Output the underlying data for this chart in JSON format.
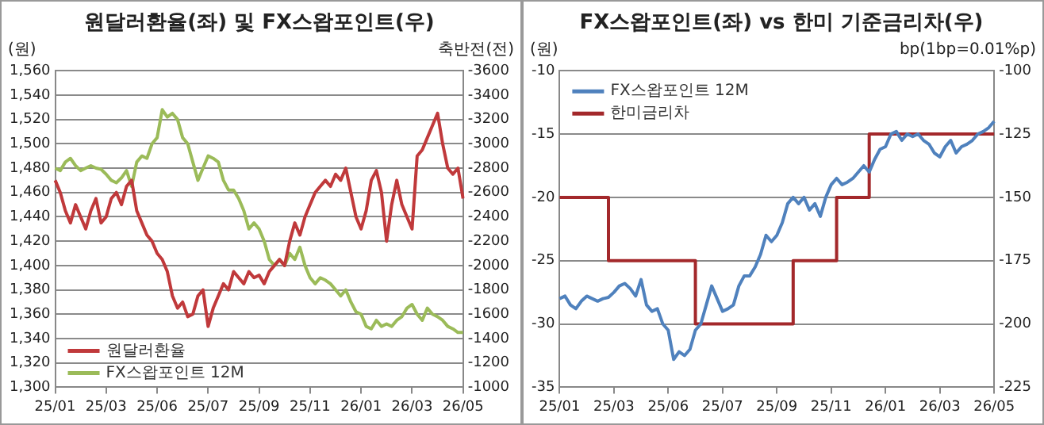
{
  "chart_data": [
    {
      "type": "line",
      "title": "원달러환율(좌) 및 FX스왑포인트(우)",
      "ylabel": "(원)",
      "y2label": "축반전(전)",
      "categories": [
        "25/01",
        null,
        null,
        null,
        null,
        null,
        null,
        null,
        null,
        null,
        "25/03",
        null,
        null,
        null,
        null,
        null,
        null,
        null,
        null,
        null,
        "25/06",
        null,
        null,
        null,
        null,
        null,
        null,
        null,
        null,
        null,
        "25/07",
        null,
        null,
        null,
        null,
        null,
        null,
        null,
        null,
        null,
        "25/09",
        null,
        null,
        null,
        null,
        null,
        null,
        null,
        null,
        null,
        "25/11",
        null,
        null,
        null,
        null,
        null,
        null,
        null,
        null,
        null,
        "26/01",
        null,
        null,
        null,
        null,
        null,
        null,
        null,
        null,
        null,
        "26/03",
        null,
        null,
        null,
        null,
        null,
        null,
        null,
        null,
        null,
        "26/05"
      ],
      "series": [
        {
          "name": "원달러환율",
          "color": "#c0393b",
          "values": [
            1470,
            1460,
            1445,
            1435,
            1450,
            1440,
            1430,
            1445,
            1455,
            1435,
            1440,
            1455,
            1460,
            1450,
            1465,
            1470,
            1445,
            1435,
            1425,
            1420,
            1410,
            1405,
            1395,
            1375,
            1365,
            1370,
            1358,
            1360,
            1375,
            1380,
            1350,
            1365,
            1375,
            1385,
            1380,
            1395,
            1390,
            1385,
            1395,
            1390,
            1392,
            1385,
            1395,
            1400,
            1405,
            1400,
            1420,
            1435,
            1425,
            1440,
            1450,
            1460,
            1465,
            1470,
            1465,
            1475,
            1470,
            1480,
            1460,
            1440,
            1430,
            1445,
            1470,
            1478,
            1460,
            1420,
            1450,
            1470,
            1450,
            1440,
            1430,
            1490,
            1495,
            1505,
            1515,
            1525,
            1500,
            1480,
            1475,
            1480,
            1455
          ]
        },
        {
          "name": "FX스왑포인트 12M",
          "color": "#9bbb59",
          "axis": "y2",
          "values": [
            -2800,
            -2780,
            -2850,
            -2880,
            -2820,
            -2780,
            -2800,
            -2820,
            -2800,
            -2790,
            -2750,
            -2700,
            -2680,
            -2720,
            -2780,
            -2650,
            -2850,
            -2900,
            -2880,
            -3000,
            -3050,
            -3280,
            -3220,
            -3250,
            -3200,
            -3050,
            -3000,
            -2850,
            -2700,
            -2800,
            -2900,
            -2880,
            -2850,
            -2700,
            -2620,
            -2620,
            -2550,
            -2450,
            -2300,
            -2350,
            -2300,
            -2200,
            -2050,
            -2000,
            -2050,
            -2000,
            -2100,
            -2050,
            -2150,
            -2000,
            -1900,
            -1850,
            -1900,
            -1880,
            -1850,
            -1800,
            -1750,
            -1800,
            -1700,
            -1620,
            -1600,
            -1500,
            -1480,
            -1550,
            -1500,
            -1520,
            -1500,
            -1550,
            -1580,
            -1650,
            -1680,
            -1600,
            -1550,
            -1650,
            -1600,
            -1580,
            -1550,
            -1500,
            -1480,
            -1450,
            -1450
          ]
        }
      ],
      "ylim": [
        1300,
        1560
      ],
      "yticks": [
        {
          "value": 1300,
          "label": "1,300"
        },
        {
          "value": 1320,
          "label": "1,320"
        },
        {
          "value": 1340,
          "label": "1,340"
        },
        {
          "value": 1360,
          "label": "1,360"
        },
        {
          "value": 1380,
          "label": "1,380"
        },
        {
          "value": 1400,
          "label": "1,400"
        },
        {
          "value": 1420,
          "label": "1,420"
        },
        {
          "value": 1440,
          "label": "1,440"
        },
        {
          "value": 1460,
          "label": "1,460"
        },
        {
          "value": 1480,
          "label": "1,480"
        },
        {
          "value": 1500,
          "label": "1,500"
        },
        {
          "value": 1520,
          "label": "1,520"
        },
        {
          "value": 1540,
          "label": "1,540"
        },
        {
          "value": 1560,
          "label": "1,560"
        }
      ],
      "y2lim": [
        -1000,
        -3600
      ],
      "y2ticks": [
        -1000,
        -1200,
        -1400,
        -1600,
        -1800,
        -2000,
        -2200,
        -2400,
        -2600,
        -2800,
        -3000,
        -3200,
        -3400,
        -3600
      ],
      "grid": "y",
      "legend": "bottom left"
    },
    {
      "type": "line",
      "title": "FX스왑포인트(좌) vs 한미 기준금리차(우)",
      "ylabel": "(원)",
      "y2label": "bp(1bp=0.01%p)",
      "categories": [
        "25/01",
        null,
        null,
        null,
        null,
        null,
        null,
        null,
        null,
        null,
        "25/03",
        null,
        null,
        null,
        null,
        null,
        null,
        null,
        null,
        null,
        "25/06",
        null,
        null,
        null,
        null,
        null,
        null,
        null,
        null,
        null,
        "25/07",
        null,
        null,
        null,
        null,
        null,
        null,
        null,
        null,
        null,
        "25/09",
        null,
        null,
        null,
        null,
        null,
        null,
        null,
        null,
        null,
        "25/11",
        null,
        null,
        null,
        null,
        null,
        null,
        null,
        null,
        null,
        "26/01",
        null,
        null,
        null,
        null,
        null,
        null,
        null,
        null,
        null,
        "26/03",
        null,
        null,
        null,
        null,
        null,
        null,
        null,
        null,
        null,
        "26/05"
      ],
      "series": [
        {
          "name": "FX스왑포인트 12M",
          "color": "#4f81bd",
          "values": [
            -28,
            -27.8,
            -28.5,
            -28.8,
            -28.2,
            -27.8,
            -28,
            -28.2,
            -28,
            -27.9,
            -27.5,
            -27,
            -26.8,
            -27.2,
            -27.8,
            -26.5,
            -28.5,
            -29,
            -28.8,
            -30,
            -30.5,
            -32.8,
            -32.2,
            -32.5,
            -32,
            -30.5,
            -30,
            -28.5,
            -27,
            -28,
            -29,
            -28.8,
            -28.5,
            -27,
            -26.2,
            -26.2,
            -25.5,
            -24.5,
            -23,
            -23.5,
            -23,
            -22,
            -20.5,
            -20,
            -20.5,
            -20,
            -21,
            -20.5,
            -21.5,
            -20,
            -19,
            -18.5,
            -19,
            -18.8,
            -18.5,
            -18,
            -17.5,
            -18,
            -17,
            -16.2,
            -16,
            -15,
            -14.8,
            -15.5,
            -15,
            -15.2,
            -15,
            -15.5,
            -15.8,
            -16.5,
            -16.8,
            -16,
            -15.5,
            -16.5,
            -16,
            -15.8,
            -15.5,
            -15,
            -14.8,
            -14.5,
            -14
          ]
        },
        {
          "name": "한미금리차",
          "color": "#a3282b",
          "type": "step",
          "axis": "y2",
          "values": [
            -150,
            -150,
            -150,
            -150,
            -150,
            -150,
            -150,
            -150,
            -150,
            -175,
            -175,
            -175,
            -175,
            -175,
            -175,
            -175,
            -175,
            -175,
            -175,
            -175,
            -175,
            -175,
            -175,
            -175,
            -175,
            -200,
            -200,
            -200,
            -200,
            -200,
            -200,
            -200,
            -200,
            -200,
            -200,
            -200,
            -200,
            -200,
            -200,
            -200,
            -200,
            -200,
            -200,
            -175,
            -175,
            -175,
            -175,
            -175,
            -175,
            -175,
            -175,
            -150,
            -150,
            -150,
            -150,
            -150,
            -150,
            -125,
            -125,
            -125,
            -125,
            -125,
            -125,
            -125,
            -125,
            -125,
            -125,
            -125,
            -125,
            -125,
            -125,
            -125,
            -125,
            -125,
            -125,
            -125,
            -125,
            -125,
            -125,
            -125,
            -125
          ]
        }
      ],
      "ylim": [
        -35,
        -10
      ],
      "yticks": [
        -35,
        -30,
        -25,
        -20,
        -15,
        -10
      ],
      "y2lim": [
        -225,
        -100
      ],
      "y2ticks": [
        -225,
        -200,
        -175,
        -150,
        -125,
        -100
      ],
      "grid": "y",
      "legend": "top left"
    }
  ]
}
